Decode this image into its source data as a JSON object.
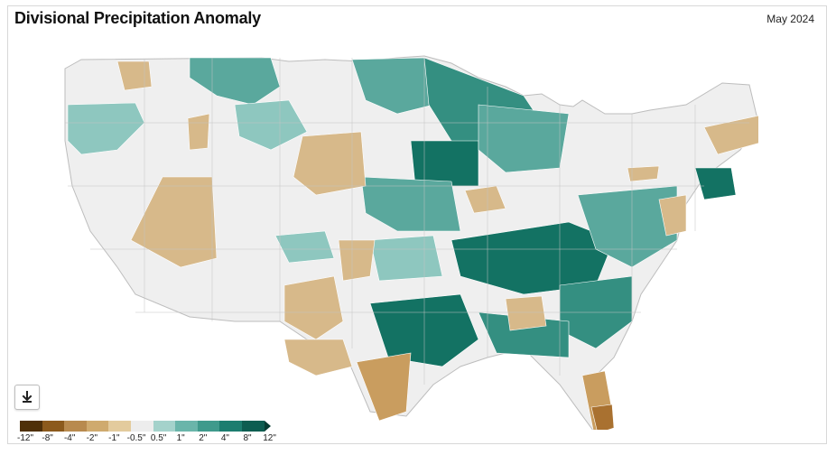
{
  "header": {
    "title": "Divisional Precipitation Anomaly",
    "date": "May 2024"
  },
  "download_icon": "download-icon",
  "legend": {
    "labels": [
      "-12\"",
      "-8\"",
      "-4\"",
      "-2\"",
      "-1\"",
      "-0.5\"",
      "0.5\"",
      "1\"",
      "2\"",
      "4\"",
      "8\"",
      "12\""
    ],
    "colors": [
      "#4f3008",
      "#8c5a1c",
      "#b88a4e",
      "#cfaa6e",
      "#e3cb9d",
      "#ededed",
      "#a4d2cb",
      "#6ab5aa",
      "#3f9a8c",
      "#1c7d6f",
      "#0d5d51",
      "#073b32"
    ]
  },
  "map": {
    "region": "Contiguous United States climate divisions",
    "palette": {
      "dry1": "#d7b98a",
      "dry2": "#c99d5f",
      "dry3": "#a97130",
      "neutral": "#efefef",
      "wet1": "#8ec7bf",
      "wet2": "#5aa89d",
      "wet3": "#348f81",
      "wet4": "#137263"
    }
  }
}
